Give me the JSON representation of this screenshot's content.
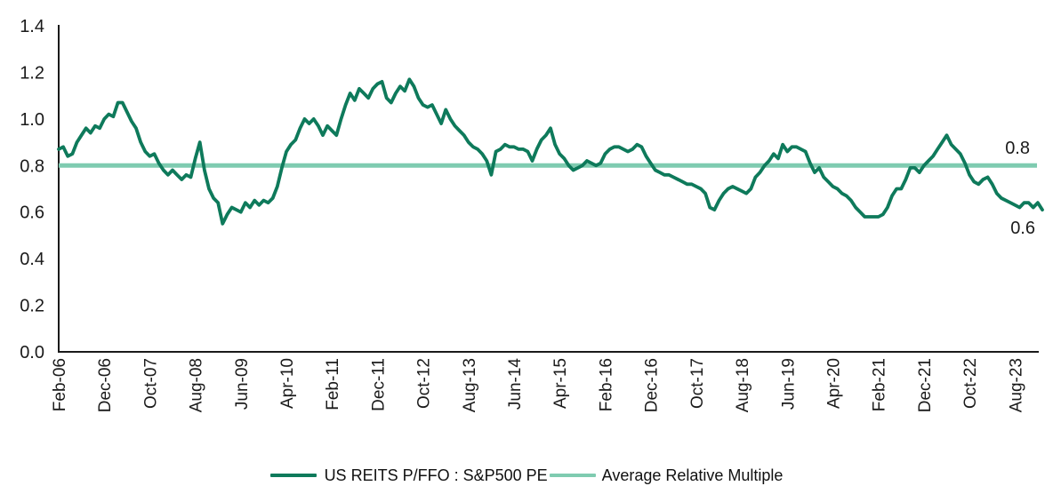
{
  "chart_data": {
    "type": "line",
    "title": "",
    "xlabel": "",
    "ylabel": "",
    "ylim": [
      0,
      1.4
    ],
    "y_tick_step": 0.2,
    "grid": false,
    "legend_position": "bottom-center",
    "x_start": "Feb-2006",
    "x_end": "Feb-2024",
    "x_interval": "monthly",
    "x_tick_every_n_months": 10,
    "x_tick_labels": [
      "Feb-06",
      "Dec-06",
      "Oct-07",
      "Aug-08",
      "Jun-09",
      "Apr-10",
      "Feb-11",
      "Dec-11",
      "Oct-12",
      "Aug-13",
      "Jun-14",
      "Apr-15",
      "Feb-16",
      "Dec-16",
      "Oct-17",
      "Aug-18",
      "Jun-19",
      "Apr-20",
      "Feb-21",
      "Dec-21",
      "Oct-22",
      "Aug-23"
    ],
    "y_tick_labels": [
      "0.0",
      "0.2",
      "0.4",
      "0.6",
      "0.8",
      "1.0",
      "1.2",
      "1.4"
    ],
    "axis_color": "#1a1a1a",
    "series": [
      {
        "name": "US REITS P/FFO : S&P500 PE",
        "color": "#0E7A5B",
        "line_width": 3.8,
        "values": [
          0.87,
          0.88,
          0.84,
          0.85,
          0.9,
          0.93,
          0.96,
          0.94,
          0.97,
          0.96,
          1.0,
          1.02,
          1.01,
          1.07,
          1.07,
          1.03,
          0.99,
          0.96,
          0.9,
          0.86,
          0.84,
          0.85,
          0.81,
          0.78,
          0.76,
          0.78,
          0.76,
          0.74,
          0.76,
          0.75,
          0.83,
          0.9,
          0.78,
          0.7,
          0.66,
          0.64,
          0.55,
          0.59,
          0.62,
          0.61,
          0.6,
          0.64,
          0.62,
          0.65,
          0.63,
          0.65,
          0.64,
          0.66,
          0.71,
          0.79,
          0.86,
          0.89,
          0.91,
          0.96,
          1.0,
          0.98,
          1.0,
          0.97,
          0.93,
          0.97,
          0.95,
          0.93,
          1.0,
          1.06,
          1.11,
          1.08,
          1.13,
          1.11,
          1.09,
          1.13,
          1.15,
          1.16,
          1.09,
          1.07,
          1.11,
          1.14,
          1.12,
          1.17,
          1.14,
          1.09,
          1.06,
          1.05,
          1.06,
          1.02,
          0.98,
          1.04,
          1.0,
          0.97,
          0.95,
          0.93,
          0.9,
          0.88,
          0.87,
          0.85,
          0.82,
          0.76,
          0.86,
          0.87,
          0.89,
          0.88,
          0.88,
          0.87,
          0.87,
          0.86,
          0.82,
          0.87,
          0.91,
          0.93,
          0.96,
          0.89,
          0.85,
          0.83,
          0.8,
          0.78,
          0.79,
          0.8,
          0.82,
          0.81,
          0.8,
          0.81,
          0.85,
          0.87,
          0.88,
          0.88,
          0.87,
          0.86,
          0.87,
          0.89,
          0.88,
          0.84,
          0.81,
          0.78,
          0.77,
          0.76,
          0.76,
          0.75,
          0.74,
          0.73,
          0.72,
          0.72,
          0.71,
          0.7,
          0.68,
          0.62,
          0.61,
          0.65,
          0.68,
          0.7,
          0.71,
          0.7,
          0.69,
          0.68,
          0.7,
          0.75,
          0.77,
          0.8,
          0.82,
          0.85,
          0.83,
          0.89,
          0.86,
          0.88,
          0.88,
          0.87,
          0.86,
          0.81,
          0.77,
          0.79,
          0.75,
          0.73,
          0.71,
          0.7,
          0.68,
          0.67,
          0.65,
          0.62,
          0.6,
          0.58,
          0.58,
          0.58,
          0.58,
          0.59,
          0.62,
          0.67,
          0.7,
          0.7,
          0.74,
          0.79,
          0.79,
          0.77,
          0.8,
          0.82,
          0.84,
          0.87,
          0.9,
          0.93,
          0.89,
          0.87,
          0.85,
          0.81,
          0.76,
          0.73,
          0.72,
          0.74,
          0.75,
          0.72,
          0.68,
          0.66,
          0.65,
          0.64,
          0.63,
          0.62,
          0.64,
          0.64,
          0.62,
          0.64,
          0.61
        ]
      },
      {
        "name": "Average Relative Multiple",
        "color": "#7FCBB0",
        "line_width": 5,
        "type": "constant",
        "value": 0.8
      }
    ],
    "annotations": [
      {
        "text": "0.8",
        "attached_to": "Average Relative Multiple",
        "position": "right-end-above"
      },
      {
        "text": "0.6",
        "attached_to": "US REITS P/FFO : S&P500 PE",
        "position": "right-end-below"
      }
    ]
  }
}
